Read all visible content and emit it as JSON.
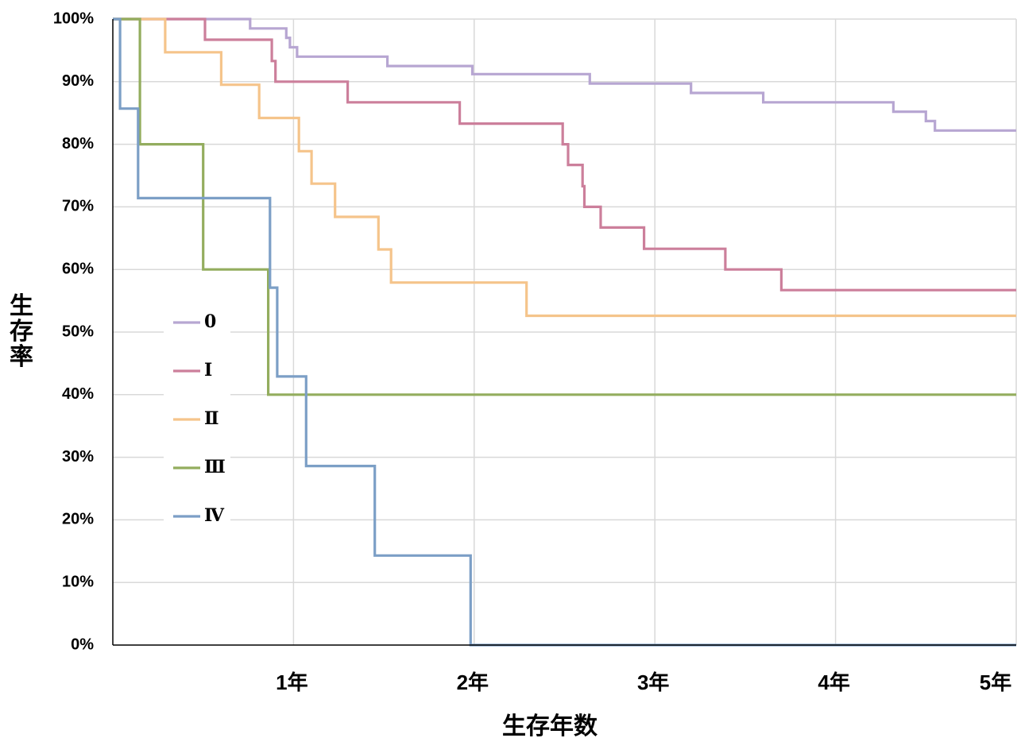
{
  "chart_data": {
    "type": "line",
    "step": true,
    "title": "",
    "xlabel": "生存年数",
    "ylabel": "生存率",
    "xlim": [
      0,
      5
    ],
    "ylim": [
      0,
      100
    ],
    "x_ticks": [
      {
        "value": 1,
        "label": "1年"
      },
      {
        "value": 2,
        "label": "2年"
      },
      {
        "value": 3,
        "label": "3年"
      },
      {
        "value": 4,
        "label": "4年"
      },
      {
        "value": 5,
        "label": "5年"
      }
    ],
    "y_ticks": [
      {
        "value": 0,
        "label": "0%"
      },
      {
        "value": 10,
        "label": "10%"
      },
      {
        "value": 20,
        "label": "20%"
      },
      {
        "value": 30,
        "label": "30%"
      },
      {
        "value": 40,
        "label": "40%"
      },
      {
        "value": 50,
        "label": "50%"
      },
      {
        "value": 60,
        "label": "60%"
      },
      {
        "value": 70,
        "label": "70%"
      },
      {
        "value": 80,
        "label": "80%"
      },
      {
        "value": 90,
        "label": "90%"
      },
      {
        "value": 100,
        "label": "100%"
      }
    ],
    "grid": true,
    "legend_position": "left-middle",
    "series": [
      {
        "name": "0",
        "color": "#b7a6d2",
        "points": [
          [
            0,
            100
          ],
          [
            0.76,
            100
          ],
          [
            0.76,
            98.5
          ],
          [
            0.96,
            98.5
          ],
          [
            0.96,
            97
          ],
          [
            0.98,
            97
          ],
          [
            0.98,
            95.5
          ],
          [
            1.02,
            95.5
          ],
          [
            1.02,
            94
          ],
          [
            1.52,
            94
          ],
          [
            1.52,
            92.5
          ],
          [
            1.99,
            92.5
          ],
          [
            1.99,
            91.2
          ],
          [
            2.64,
            91.2
          ],
          [
            2.64,
            89.7
          ],
          [
            3.2,
            89.7
          ],
          [
            3.2,
            88.2
          ],
          [
            3.6,
            88.2
          ],
          [
            3.6,
            86.7
          ],
          [
            4.32,
            86.7
          ],
          [
            4.32,
            85.2
          ],
          [
            4.5,
            85.2
          ],
          [
            4.5,
            83.7
          ],
          [
            4.55,
            83.7
          ],
          [
            4.55,
            82.2
          ],
          [
            5,
            82.2
          ]
        ]
      },
      {
        "name": "Ⅰ",
        "color": "#cc7f9b",
        "points": [
          [
            0,
            100
          ],
          [
            0.51,
            100
          ],
          [
            0.51,
            96.7
          ],
          [
            0.88,
            96.7
          ],
          [
            0.88,
            93.3
          ],
          [
            0.9,
            93.3
          ],
          [
            0.9,
            90
          ],
          [
            1.3,
            90
          ],
          [
            1.3,
            86.7
          ],
          [
            1.92,
            86.7
          ],
          [
            1.92,
            83.3
          ],
          [
            2.49,
            83.3
          ],
          [
            2.49,
            80
          ],
          [
            2.52,
            80
          ],
          [
            2.52,
            76.7
          ],
          [
            2.6,
            76.7
          ],
          [
            2.6,
            73.3
          ],
          [
            2.61,
            73.3
          ],
          [
            2.61,
            70
          ],
          [
            2.7,
            70
          ],
          [
            2.7,
            66.7
          ],
          [
            2.94,
            66.7
          ],
          [
            2.94,
            63.3
          ],
          [
            3.39,
            63.3
          ],
          [
            3.39,
            60
          ],
          [
            3.7,
            60
          ],
          [
            3.7,
            56.7
          ],
          [
            5,
            56.7
          ]
        ]
      },
      {
        "name": "Ⅱ",
        "color": "#f5c48b",
        "points": [
          [
            0,
            100
          ],
          [
            0.29,
            100
          ],
          [
            0.29,
            94.7
          ],
          [
            0.6,
            94.7
          ],
          [
            0.6,
            89.5
          ],
          [
            0.81,
            89.5
          ],
          [
            0.81,
            84.2
          ],
          [
            1.03,
            84.2
          ],
          [
            1.03,
            78.9
          ],
          [
            1.1,
            78.9
          ],
          [
            1.1,
            73.7
          ],
          [
            1.23,
            73.7
          ],
          [
            1.23,
            68.4
          ],
          [
            1.47,
            68.4
          ],
          [
            1.47,
            63.2
          ],
          [
            1.54,
            63.2
          ],
          [
            1.54,
            57.9
          ],
          [
            2.29,
            57.9
          ],
          [
            2.29,
            52.6
          ],
          [
            5,
            52.6
          ]
        ]
      },
      {
        "name": "Ⅲ",
        "color": "#93ad5e",
        "points": [
          [
            0,
            100
          ],
          [
            0.15,
            100
          ],
          [
            0.15,
            80
          ],
          [
            0.5,
            80
          ],
          [
            0.5,
            60
          ],
          [
            0.86,
            60
          ],
          [
            0.86,
            40
          ],
          [
            5,
            40
          ]
        ]
      },
      {
        "name": "Ⅳ",
        "color": "#7c9fc6",
        "points": [
          [
            0,
            100
          ],
          [
            0.04,
            100
          ],
          [
            0.04,
            85.7
          ],
          [
            0.14,
            85.7
          ],
          [
            0.14,
            71.4
          ],
          [
            0.87,
            71.4
          ],
          [
            0.87,
            57.1
          ],
          [
            0.91,
            57.1
          ],
          [
            0.91,
            42.9
          ],
          [
            1.07,
            42.9
          ],
          [
            1.07,
            28.6
          ],
          [
            1.45,
            28.6
          ],
          [
            1.45,
            14.3
          ],
          [
            1.98,
            14.3
          ],
          [
            1.98,
            0
          ],
          [
            5,
            0
          ]
        ]
      }
    ]
  }
}
